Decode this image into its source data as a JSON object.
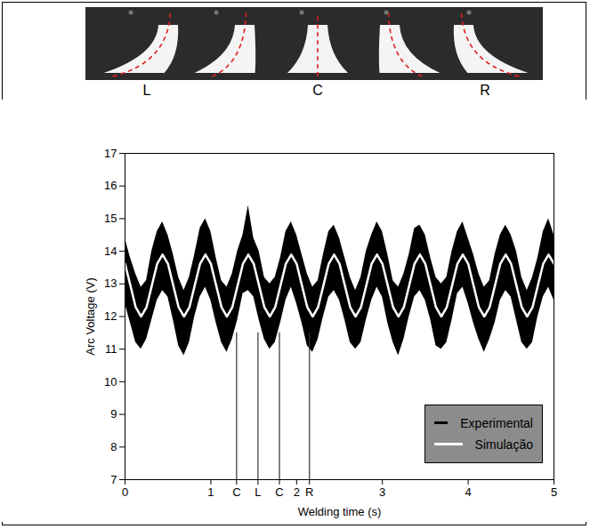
{
  "chart_data": {
    "type": "line",
    "x_label": "Welding time (s)",
    "y_label": "Arc Voltage (V)",
    "image_labels": [
      "L",
      "C",
      "R"
    ],
    "xlim": [
      0,
      5
    ],
    "ylim": [
      7,
      17
    ],
    "xticks": [
      0,
      1,
      {
        "value": 1.3,
        "label": "C"
      },
      {
        "value": 1.55,
        "label": "L"
      },
      {
        "value": 1.8,
        "label": "C"
      },
      2,
      {
        "value": 2.15,
        "label": "R"
      },
      3,
      4,
      5
    ],
    "yticks": [
      7,
      8,
      9,
      10,
      11,
      12,
      13,
      14,
      15,
      16,
      17
    ],
    "grid": false,
    "legend": "lower right",
    "x": [
      0,
      0.0625,
      0.125,
      0.1875,
      0.25,
      0.3125,
      0.375,
      0.4375,
      0.5,
      0.5625,
      0.625,
      0.6875,
      0.75,
      0.8125,
      0.875,
      0.9375,
      1,
      1.0625,
      1.125,
      1.1875,
      1.25,
      1.3125,
      1.375,
      1.4375,
      1.5,
      1.5625,
      1.625,
      1.6875,
      1.75,
      1.8125,
      1.875,
      1.9375,
      2,
      2.0625,
      2.125,
      2.1875,
      2.25,
      2.3125,
      2.375,
      2.4375,
      2.5,
      2.5625,
      2.625,
      2.6875,
      2.75,
      2.8125,
      2.875,
      2.9375,
      3,
      3.0625,
      3.125,
      3.1875,
      3.25,
      3.3125,
      3.375,
      3.4375,
      3.5,
      3.5625,
      3.625,
      3.6875,
      3.75,
      3.8125,
      3.875,
      3.9375,
      4,
      4.0625,
      4.125,
      4.1875,
      4.25,
      4.3125,
      4.375,
      4.4375,
      4.5,
      4.5625,
      4.625,
      4.6875,
      4.75,
      4.8125,
      4.875,
      4.9375,
      5
    ],
    "series": [
      {
        "name": "Experimental",
        "color": "#000000",
        "type": "area",
        "low": [
          12.4,
          11.8,
          11.2,
          11.0,
          11.3,
          11.9,
          12.5,
          12.8,
          12.6,
          11.9,
          11.1,
          10.8,
          11.2,
          12.0,
          12.6,
          12.9,
          12.5,
          11.8,
          11.2,
          10.9,
          11.3,
          11.9,
          12.7,
          12.8,
          12.6,
          11.9,
          11.3,
          11.0,
          11.2,
          11.8,
          12.5,
          12.9,
          12.4,
          11.8,
          11.1,
          10.9,
          11.3,
          12.0,
          12.6,
          12.8,
          12.5,
          11.9,
          11.2,
          11.0,
          11.2,
          11.9,
          12.5,
          12.9,
          12.6,
          11.8,
          11.2,
          10.8,
          11.3,
          12.0,
          12.6,
          12.8,
          12.5,
          11.9,
          11.1,
          11.0,
          11.2,
          11.9,
          12.7,
          12.9,
          12.4,
          11.8,
          11.3,
          10.9,
          11.3,
          11.8,
          12.5,
          12.8,
          12.6,
          11.9,
          11.2,
          11.0,
          11.2,
          12.0,
          12.6,
          12.9,
          12.5
        ],
        "high": [
          14.4,
          13.8,
          13.3,
          12.9,
          13.1,
          14.0,
          14.6,
          14.9,
          14.5,
          13.9,
          13.2,
          12.8,
          13.2,
          13.9,
          14.7,
          15.0,
          14.6,
          13.8,
          13.1,
          12.9,
          13.3,
          14.0,
          14.5,
          15.4,
          14.4,
          14.0,
          13.2,
          13.0,
          13.2,
          13.8,
          14.6,
          14.9,
          14.5,
          13.9,
          13.3,
          12.9,
          13.1,
          13.9,
          14.6,
          14.8,
          14.4,
          13.8,
          13.2,
          12.8,
          13.2,
          14.0,
          14.5,
          14.9,
          14.6,
          13.9,
          13.1,
          12.9,
          13.3,
          13.9,
          14.7,
          14.8,
          14.5,
          13.8,
          13.2,
          13.0,
          13.2,
          14.0,
          14.6,
          14.9,
          14.4,
          13.9,
          13.3,
          12.9,
          13.1,
          13.9,
          14.5,
          14.8,
          14.5,
          14.0,
          13.2,
          12.8,
          13.2,
          13.8,
          14.6,
          15.0,
          14.5
        ]
      },
      {
        "name": "Simulação",
        "color": "#ffffff",
        "type": "line",
        "values": [
          13.62,
          12.95,
          12.28,
          12.0,
          12.28,
          12.95,
          13.62,
          13.9,
          13.62,
          12.95,
          12.28,
          12.0,
          12.28,
          12.95,
          13.62,
          13.9,
          13.62,
          12.95,
          12.28,
          12.0,
          12.28,
          12.95,
          13.62,
          13.9,
          13.62,
          12.95,
          12.28,
          12.0,
          12.28,
          12.95,
          13.62,
          13.9,
          13.62,
          12.95,
          12.28,
          12.0,
          12.28,
          12.95,
          13.62,
          13.9,
          13.62,
          12.95,
          12.28,
          12.0,
          12.28,
          12.95,
          13.62,
          13.9,
          13.62,
          12.95,
          12.28,
          12.0,
          12.28,
          12.95,
          13.62,
          13.9,
          13.62,
          12.95,
          12.28,
          12.0,
          12.28,
          12.95,
          13.62,
          13.9,
          13.62,
          12.95,
          12.28,
          12.0,
          12.28,
          12.95,
          13.62,
          13.9,
          13.62,
          12.95,
          12.28,
          12.0,
          12.28,
          12.95,
          13.62,
          13.9,
          13.62
        ]
      }
    ],
    "event_lines": {
      "x": [
        1.3,
        1.55,
        1.8,
        2.15
      ],
      "top": [
        11.5,
        11.5,
        11.5,
        11.5
      ]
    }
  }
}
